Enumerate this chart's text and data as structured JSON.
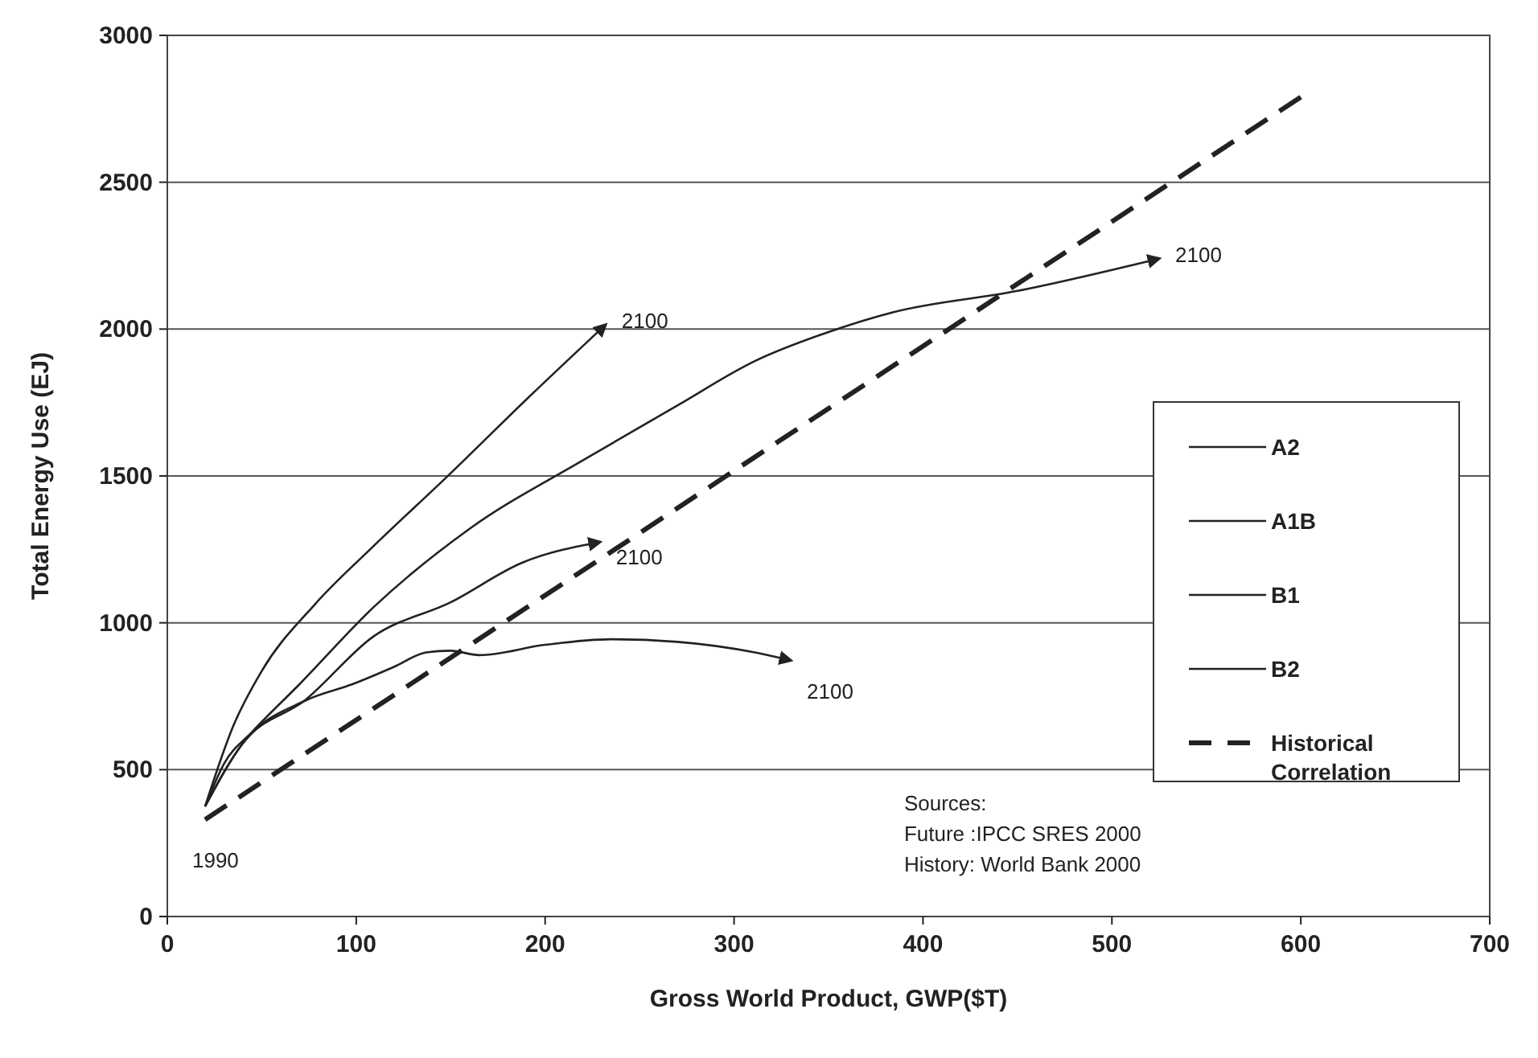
{
  "chart_data": {
    "type": "line",
    "xlabel": "Gross World Product, GWP($T)",
    "ylabel": "Total Energy Use (EJ)",
    "xlim": [
      0,
      700
    ],
    "xticks": [
      0,
      100,
      200,
      300,
      400,
      500,
      600,
      700
    ],
    "ylim": [
      0,
      3000
    ],
    "yticks": [
      0,
      500,
      1000,
      1500,
      2000,
      2500,
      3000
    ],
    "grid": "y",
    "legend": "right",
    "marker": "none",
    "series": [
      {
        "name": "A2",
        "color": "#222222",
        "line_style": "solid",
        "x": [
          20,
          35,
          50,
          78,
          109,
          149,
          190,
          232
        ],
        "values": [
          375,
          650,
          836,
          1062,
          1260,
          1503,
          1760,
          2015
        ]
      },
      {
        "name": "A1B",
        "color": "#222222",
        "line_style": "solid",
        "x": [
          20,
          30,
          45,
          70,
          109,
          160,
          221,
          270,
          311,
          350,
          384,
          450,
          525
        ],
        "values": [
          375,
          520,
          629,
          791,
          1052,
          1320,
          1557,
          1740,
          1891,
          1990,
          2057,
          2130,
          2240
        ]
      },
      {
        "name": "B1",
        "color": "#222222",
        "line_style": "solid",
        "x": [
          20,
          40,
          73,
          98,
          120,
          137,
          150,
          165,
          200,
          235,
          270,
          311,
          330
        ],
        "values": [
          375,
          590,
          735,
          791,
          850,
          899,
          905,
          890,
          925,
          944,
          935,
          899,
          872
        ]
      },
      {
        "name": "B2",
        "color": "#222222",
        "line_style": "solid",
        "x": [
          20,
          40,
          73,
          109,
          150,
          188,
          229
        ],
        "values": [
          375,
          590,
          737,
          953,
          1070,
          1205,
          1275
        ]
      },
      {
        "name": "Historical Correlation",
        "color": "#222222",
        "line_style": "dashed",
        "x": [
          20,
          600
        ],
        "values": [
          330,
          2790
        ]
      }
    ],
    "annotations": [
      {
        "text": "1990",
        "x": 20,
        "y": 330
      },
      {
        "text": "2100",
        "x": 232,
        "y": 2015
      },
      {
        "text": "2100",
        "x": 525,
        "y": 2240
      },
      {
        "text": "2100",
        "x": 229,
        "y": 1275
      },
      {
        "text": "2100",
        "x": 330,
        "y": 872
      },
      "Sources:",
      "Future :IPCC SRES 2000",
      "History: World Bank 2000"
    ]
  }
}
